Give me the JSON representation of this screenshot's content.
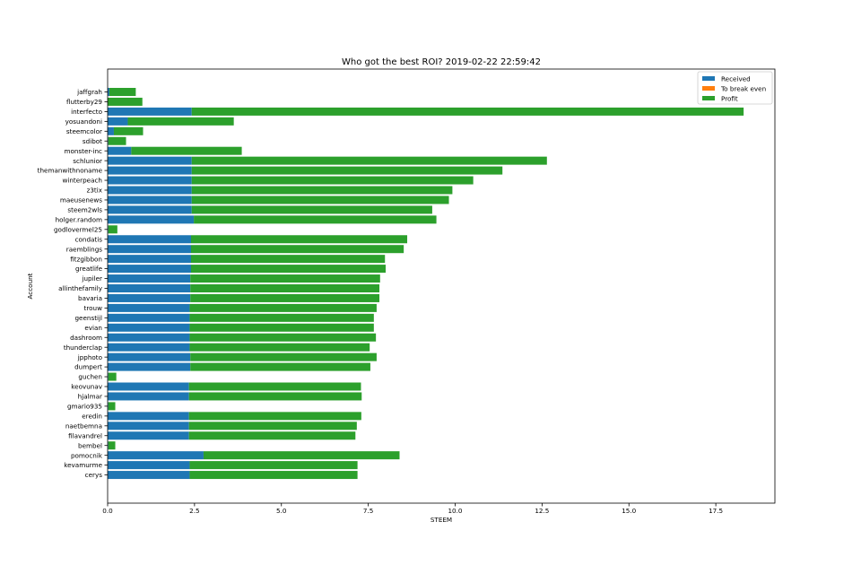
{
  "chart_data": {
    "type": "bar",
    "orientation": "horizontal",
    "stacked": true,
    "title": "Who got the best ROI? 2019-02-22 22:59:42",
    "xlabel": "STEEM",
    "ylabel": "Account",
    "xlim": [
      0,
      19.2
    ],
    "xticks": [
      0,
      2.5,
      5,
      7.5,
      10,
      12.5,
      15,
      17.5
    ],
    "xtick_labels": [
      "0.0",
      "2.5",
      "5.0",
      "7.5",
      "10.0",
      "12.5",
      "15.0",
      "17.5"
    ],
    "grid": false,
    "legend_position": "top-right",
    "categories": [
      "jaffgrah",
      "flutterby29",
      "interfecto",
      "yosuandoni",
      "steemcolor",
      "sdibot",
      "monster-inc",
      "schlunior",
      "themanwithnoname",
      "winterpeach",
      "z3tix",
      "maeusenews",
      "steem2wls",
      "holger.random",
      "godlovermel25",
      "condatis",
      "raemblings",
      "fitzgibbon",
      "greatlife",
      "jupiler",
      "allinthefamily",
      "bavaria",
      "trouw",
      "geenstijl",
      "evian",
      "dashroom",
      "thunderclap",
      "jpphoto",
      "dumpert",
      "guchen",
      "keovunav",
      "hjalmar",
      "gmario935",
      "eredin",
      "naetbemna",
      "filavandrel",
      "bembel",
      "pomocnik",
      "kevamurme",
      "cerys"
    ],
    "series": [
      {
        "name": "Received",
        "color": "#1f77b4",
        "values": [
          0.05,
          0.0,
          2.42,
          0.58,
          0.18,
          0.02,
          0.68,
          2.42,
          2.42,
          2.42,
          2.42,
          2.42,
          2.42,
          2.48,
          0.02,
          2.4,
          2.4,
          2.4,
          2.4,
          2.38,
          2.38,
          2.38,
          2.36,
          2.36,
          2.36,
          2.36,
          2.36,
          2.38,
          2.38,
          0.02,
          2.34,
          2.34,
          0.02,
          2.34,
          2.34,
          2.34,
          0.02,
          2.76,
          2.36,
          2.36
        ]
      },
      {
        "name": "To break even",
        "color": "#ff7f0e",
        "values": [
          0,
          0,
          0,
          0,
          0,
          0,
          0,
          0,
          0,
          0,
          0,
          0,
          0,
          0,
          0,
          0,
          0,
          0,
          0,
          0,
          0,
          0,
          0,
          0,
          0,
          0,
          0,
          0,
          0,
          0,
          0,
          0,
          0,
          0,
          0,
          0,
          0,
          0,
          0,
          0
        ]
      },
      {
        "name": "Profit",
        "color": "#2ca02c",
        "values": [
          0.76,
          1.0,
          15.88,
          3.05,
          0.84,
          0.51,
          3.18,
          10.22,
          8.94,
          8.1,
          7.5,
          7.4,
          6.92,
          6.98,
          0.26,
          6.22,
          6.12,
          5.58,
          5.6,
          5.46,
          5.44,
          5.44,
          5.38,
          5.3,
          5.3,
          5.36,
          5.18,
          5.36,
          5.18,
          0.23,
          4.95,
          4.97,
          0.2,
          4.96,
          4.83,
          4.79,
          0.2,
          5.64,
          4.83,
          4.83
        ]
      }
    ]
  }
}
